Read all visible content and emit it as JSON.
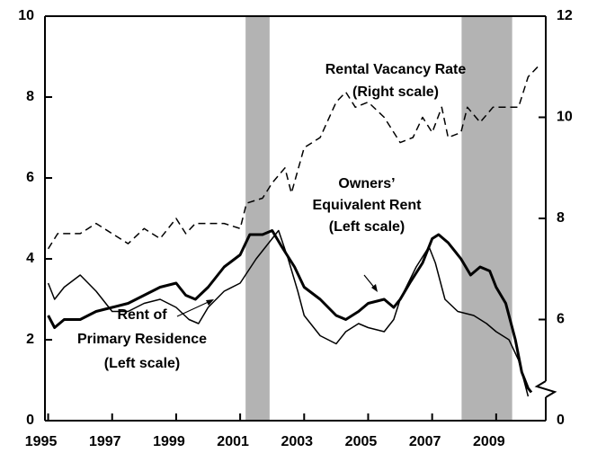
{
  "chart_data": {
    "type": "line",
    "xlim": [
      1994.9,
      2010.55
    ],
    "xticks": [
      1995,
      1997,
      1999,
      2001,
      2003,
      2005,
      2007,
      2009
    ],
    "ylim": [
      0,
      10
    ],
    "yticks": [
      0,
      2,
      4,
      6,
      8,
      10
    ],
    "y2lim": [
      4,
      12
    ],
    "y2ticks": [
      0,
      6,
      8,
      10,
      12
    ],
    "y2_break": true,
    "recessions": [
      [
        2001.17,
        2001.92
      ],
      [
        2007.92,
        2009.5
      ]
    ],
    "recession_color": "#b3b3b3",
    "series": [
      {
        "color": "#000000",
        "width": 3,
        "dash": "none",
        "x": [
          1995.0,
          1995.2,
          1995.5,
          1996,
          1996.5,
          1997,
          1997.5,
          1998,
          1998.5,
          1999,
          1999.3,
          1999.6,
          2000,
          2000.5,
          2001,
          2001.3,
          2001.7,
          2002,
          2002.3,
          2002.7,
          2003,
          2003.5,
          2004,
          2004.3,
          2004.7,
          2005,
          2005.5,
          2005.8,
          2006,
          2006.3,
          2006.7,
          2007,
          2007.2,
          2007.5,
          2007.9,
          2008.2,
          2008.5,
          2008.8,
          2009,
          2009.3,
          2009.6,
          2009.8,
          2010.0,
          2010.1
        ],
        "values": [
          2.6,
          2.3,
          2.5,
          2.5,
          2.7,
          2.8,
          2.9,
          3.1,
          3.3,
          3.4,
          3.1,
          3.0,
          3.3,
          3.8,
          4.1,
          4.6,
          4.6,
          4.7,
          4.3,
          3.8,
          3.3,
          3.0,
          2.6,
          2.5,
          2.7,
          2.9,
          3.0,
          2.8,
          3.0,
          3.4,
          3.9,
          4.5,
          4.6,
          4.4,
          4.0,
          3.6,
          3.8,
          3.7,
          3.3,
          2.9,
          2.0,
          1.2,
          0.8,
          0.7
        ]
      },
      {
        "color": "#000000",
        "width": 1.5,
        "dash": "none",
        "x": [
          1995.0,
          1995.2,
          1995.5,
          1996,
          1996.5,
          1997,
          1997.5,
          1998,
          1998.5,
          1999,
          1999.4,
          1999.7,
          2000,
          2000.5,
          2001,
          2001.5,
          2002,
          2002.2,
          2002.5,
          2002.8,
          2003,
          2003.5,
          2004,
          2004.3,
          2004.7,
          2005,
          2005.5,
          2005.8,
          2006,
          2006.5,
          2006.9,
          2007.1,
          2007.4,
          2007.8,
          2008.3,
          2008.7,
          2009,
          2009.4,
          2009.7,
          2009.9,
          2010.0
        ],
        "values": [
          3.4,
          3.0,
          3.3,
          3.6,
          3.2,
          2.7,
          2.7,
          2.9,
          3.0,
          2.8,
          2.5,
          2.4,
          2.8,
          3.2,
          3.4,
          4.0,
          4.5,
          4.7,
          4.0,
          3.2,
          2.6,
          2.1,
          1.9,
          2.2,
          2.4,
          2.3,
          2.2,
          2.5,
          3.0,
          3.8,
          4.3,
          3.9,
          3.0,
          2.7,
          2.6,
          2.4,
          2.2,
          2.0,
          1.5,
          0.9,
          0.6
        ]
      },
      {
        "color": "#000000",
        "width": 1.5,
        "dash": "8 5",
        "axis": "y2",
        "x": [
          1995.0,
          1995.3,
          1996,
          1996.5,
          1997,
          1997.5,
          1998,
          1998.5,
          1999,
          1999.3,
          1999.6,
          2000,
          2000.5,
          2001,
          2001.2,
          2001.7,
          2002,
          2002.4,
          2002.6,
          2003,
          2003.5,
          2004,
          2004.3,
          2004.6,
          2005,
          2005.5,
          2006,
          2006.4,
          2006.7,
          2007,
          2007.3,
          2007.5,
          2007.9,
          2008.1,
          2008.5,
          2008.9,
          2009.3,
          2009.7,
          2010.0,
          2010.3
        ],
        "values": [
          7.4,
          7.7,
          7.7,
          7.9,
          7.7,
          7.5,
          7.8,
          7.6,
          8.0,
          7.7,
          7.9,
          7.9,
          7.9,
          7.8,
          8.3,
          8.4,
          8.7,
          9.0,
          8.5,
          9.4,
          9.6,
          10.3,
          10.5,
          10.2,
          10.3,
          10.0,
          9.5,
          9.6,
          10.0,
          9.7,
          10.2,
          9.6,
          9.7,
          10.2,
          9.9,
          10.2,
          10.2,
          10.2,
          10.8,
          11.0
        ]
      }
    ],
    "annotations": [
      {
        "lines": [
          "Rental Vacancy Rate",
          "(Right scale)"
        ]
      },
      {
        "lines": [
          "Owners’",
          "Equivalent Rent",
          "(Left scale)"
        ]
      },
      {
        "lines": [
          "Rent of",
          "Primary Residence",
          "(Left scale)"
        ]
      }
    ]
  }
}
